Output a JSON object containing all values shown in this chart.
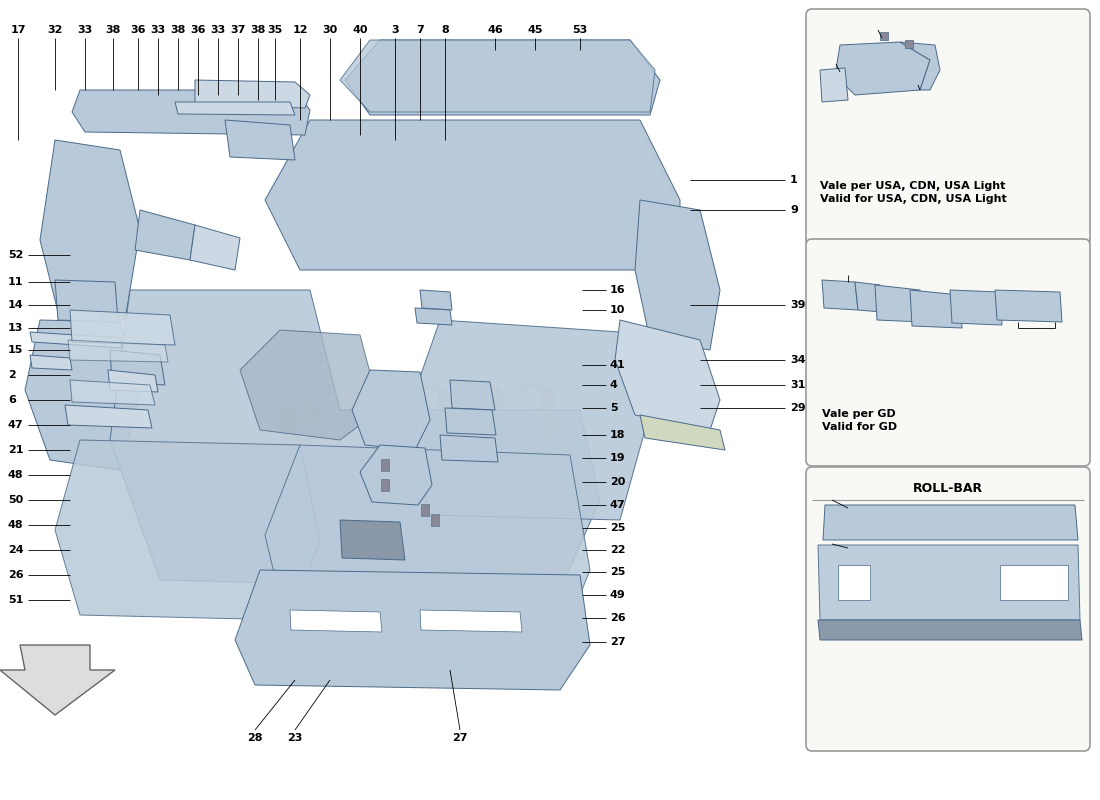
{
  "bg_color": "#ffffff",
  "part_color": "#b8c9d9",
  "part_edge_color": "#4a6a8a",
  "part_light_color": "#ccd9e5",
  "part_dark_color": "#8aa0b5",
  "watermark_text": "a passion for excellence",
  "watermark_color": "#c8a030",
  "watermark_alpha": 0.3,
  "watermark2_text": "e 1083",
  "watermark2_color": "#c8a030",
  "watermark2_alpha": 0.28,
  "box1_label": "Vale per USA, CDN, USA Light\nValid for USA, CDN, USA Light",
  "box2_label": "Vale per GD\nValid for GD",
  "box3_label": "ROLL-BAR",
  "label_fontsize": 8,
  "callout_fontsize": 8
}
